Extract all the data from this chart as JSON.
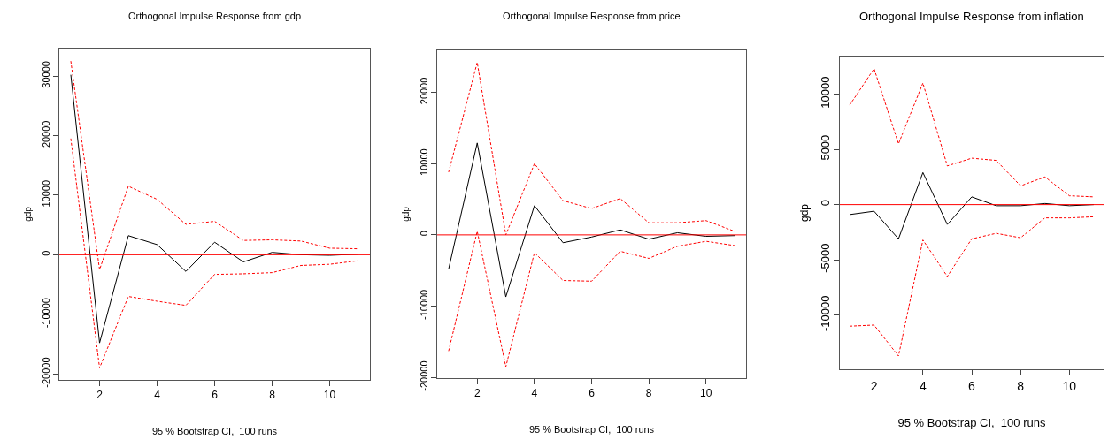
{
  "chart_data": [
    {
      "type": "line",
      "title": "Orthogonal Impulse Response from gdp",
      "xlabel": "95 % Bootstrap CI,  100 runs",
      "ylabel": "gdp",
      "x": [
        1,
        2,
        3,
        4,
        5,
        6,
        7,
        8,
        9,
        10,
        11
      ],
      "series": [
        {
          "color": "#000000",
          "line_style": "solid",
          "values": [
            30200,
            -14800,
            3200,
            1700,
            -2800,
            2100,
            -1200,
            400,
            0,
            -100,
            100
          ]
        },
        {
          "color": "#ff0000",
          "line_style": "dashed",
          "values": [
            32500,
            -2500,
            11500,
            9300,
            5100,
            5600,
            2400,
            2500,
            2300,
            1100,
            1000
          ]
        },
        {
          "color": "#ff0000",
          "line_style": "dashed",
          "values": [
            19500,
            -19000,
            -7000,
            -7800,
            -8500,
            -3300,
            -3200,
            -3000,
            -1800,
            -1600,
            -1000
          ]
        }
      ],
      "xlim": [
        0.6,
        11.4
      ],
      "xticks": [
        2,
        4,
        6,
        8,
        10
      ],
      "ylim": [
        -21000,
        34600
      ],
      "yticks": [
        -20000,
        -10000,
        0,
        10000,
        20000,
        30000
      ],
      "ref_lines": [
        {
          "axis": "y",
          "value": 0,
          "color": "#ff0000"
        }
      ]
    },
    {
      "type": "line",
      "title": "Orthogonal Impulse Response from price",
      "xlabel": "95 % Bootstrap CI,  100 runs",
      "ylabel": "gdp",
      "x": [
        1,
        2,
        3,
        4,
        5,
        6,
        7,
        8,
        9,
        10,
        11
      ],
      "series": [
        {
          "color": "#000000",
          "line_style": "solid",
          "values": [
            -4800,
            12900,
            -8700,
            4100,
            -1100,
            -300,
            700,
            -600,
            300,
            -200,
            -100
          ]
        },
        {
          "color": "#ff0000",
          "line_style": "dashed",
          "values": [
            8800,
            24200,
            0,
            10000,
            4800,
            3700,
            5100,
            1700,
            1700,
            2000,
            500
          ]
        },
        {
          "color": "#ff0000",
          "line_style": "dashed",
          "values": [
            -16300,
            500,
            -18500,
            -2500,
            -6400,
            -6500,
            -2300,
            -3300,
            -1600,
            -900,
            -1500
          ]
        }
      ],
      "xlim": [
        0.6,
        11.4
      ],
      "xticks": [
        2,
        4,
        6,
        8,
        10
      ],
      "ylim": [
        -20100,
        25900
      ],
      "yticks": [
        -20000,
        -10000,
        0,
        10000,
        20000
      ],
      "ref_lines": [
        {
          "axis": "y",
          "value": 0,
          "color": "#ff0000"
        }
      ]
    },
    {
      "type": "line",
      "title": "Orthogonal Impulse Response from inflation",
      "xlabel": "95 % Bootstrap CI,  100 runs",
      "ylabel": "gdp",
      "x": [
        1,
        2,
        3,
        4,
        5,
        6,
        7,
        8,
        9,
        10,
        11
      ],
      "series": [
        {
          "color": "#000000",
          "line_style": "solid",
          "values": [
            -900,
            -600,
            -3100,
            2900,
            -1800,
            700,
            -100,
            -100,
            100,
            -100,
            0
          ]
        },
        {
          "color": "#ff0000",
          "line_style": "dashed",
          "values": [
            9000,
            12300,
            5500,
            11000,
            3500,
            4200,
            4000,
            1700,
            2500,
            800,
            700
          ]
        },
        {
          "color": "#ff0000",
          "line_style": "dashed",
          "values": [
            -11000,
            -10900,
            -13700,
            -3200,
            -6500,
            -3100,
            -2600,
            -3000,
            -1200,
            -1200,
            -1100
          ]
        }
      ],
      "xlim": [
        0.6,
        11.4
      ],
      "xticks": [
        2,
        4,
        6,
        8,
        10
      ],
      "ylim": [
        -14900,
        13400
      ],
      "yticks": [
        -10000,
        -5000,
        0,
        5000,
        10000
      ],
      "ref_lines": [
        {
          "axis": "y",
          "value": 0,
          "color": "#ff0000"
        }
      ]
    }
  ]
}
